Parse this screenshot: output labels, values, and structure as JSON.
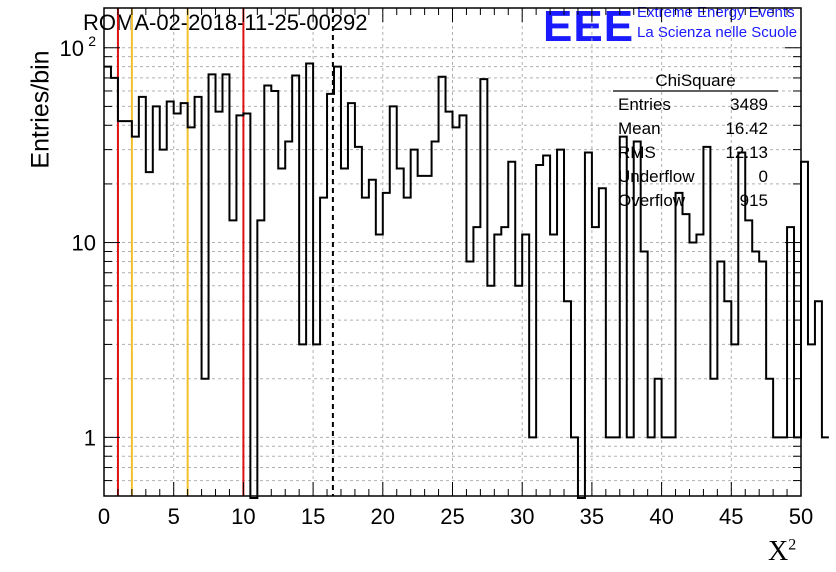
{
  "header": {
    "title": "ROMA-02-2018-11-25-00292",
    "logo_mark": "EEE",
    "logo_line1": "Extreme Energy Events",
    "logo_line2": "La Scienza nelle Scuole"
  },
  "colors": {
    "histogram": "#000000",
    "red_lines": "#dd1111",
    "orange_lines": "#f2c02a",
    "logo": "#1a1aff",
    "grid": "#b0b0b0"
  },
  "stats_box": {
    "title": "ChiSquare",
    "rows": [
      {
        "label": "Entries",
        "value": "3489"
      },
      {
        "label": "Mean",
        "value": "16.42"
      },
      {
        "label": "RMS",
        "value": "12.13"
      },
      {
        "label": "Underflow",
        "value": "0"
      },
      {
        "label": "Overflow",
        "value": "915"
      }
    ]
  },
  "chart_data": {
    "type": "histogram",
    "title": "ROMA-02-2018-11-25-00292",
    "xlabel": "X",
    "xlabel_sup": "2",
    "ylabel": "Entries/bin",
    "yscale": "log",
    "xlim": [
      0,
      50
    ],
    "ylim": [
      0.5,
      160
    ],
    "grid": true,
    "x_ticks": [
      0,
      5,
      10,
      15,
      20,
      25,
      30,
      35,
      40,
      45,
      50
    ],
    "y_ticks": [
      {
        "value": 1,
        "label": "1"
      },
      {
        "value": 10,
        "label": "10"
      },
      {
        "value": 100,
        "label": "10",
        "sup": "2"
      }
    ],
    "bin_width": 0.5,
    "bin_counts": [
      80,
      70,
      42,
      42,
      35,
      56,
      23,
      50,
      30,
      53,
      46,
      52,
      39,
      56,
      2,
      73,
      47,
      73,
      13,
      45,
      46,
      0,
      13,
      64,
      60,
      24,
      33,
      72,
      3,
      83,
      3,
      17,
      58,
      80,
      24,
      52,
      31,
      17,
      21,
      11,
      18,
      50,
      24,
      17,
      30,
      22,
      22,
      33,
      71,
      47,
      39,
      45,
      8,
      12,
      69,
      6,
      11,
      12,
      26,
      6,
      11,
      1,
      25,
      28,
      11,
      30,
      5,
      1,
      0,
      29,
      12,
      19,
      1,
      1,
      35,
      1,
      33,
      9,
      1,
      2,
      1,
      1,
      18,
      14,
      10,
      11,
      31,
      2,
      8,
      5,
      3,
      29,
      13,
      9,
      8,
      2,
      1,
      1,
      12,
      1,
      26,
      3,
      5,
      1
    ],
    "lines": [
      {
        "x": 1,
        "color": "red",
        "style": "solid"
      },
      {
        "x": 2,
        "color": "orange",
        "style": "solid"
      },
      {
        "x": 6,
        "color": "orange",
        "style": "solid"
      },
      {
        "x": 10,
        "color": "red",
        "style": "solid"
      },
      {
        "x": 16.42,
        "color": "black",
        "style": "dashed"
      }
    ]
  }
}
